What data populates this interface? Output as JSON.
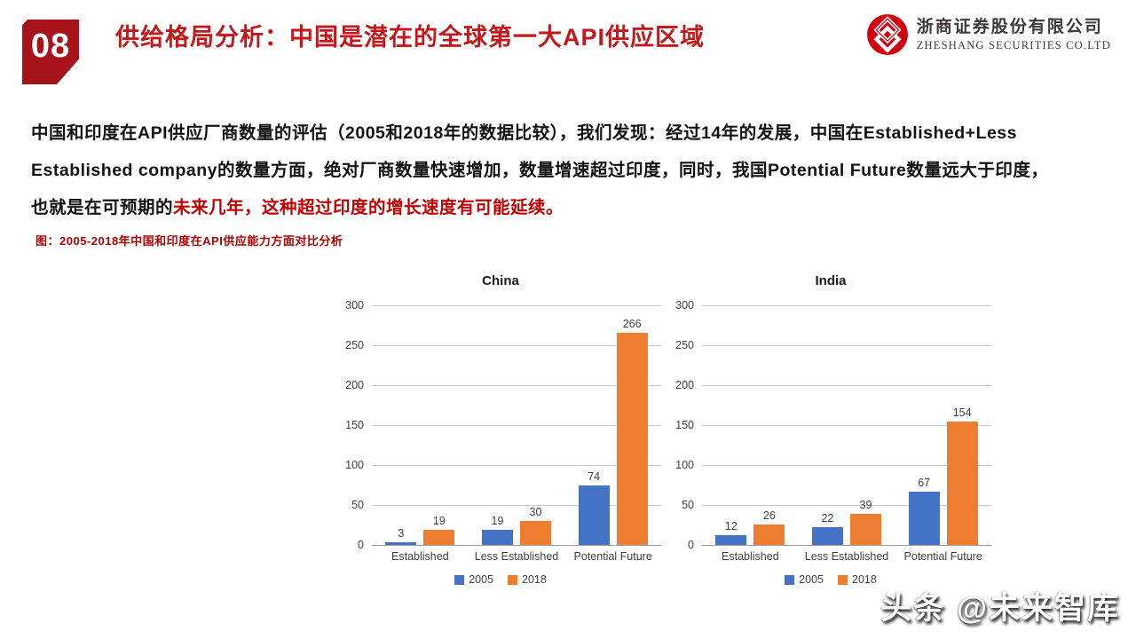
{
  "header": {
    "page_number": "08",
    "title": "供给格局分析：中国是潜在的全球第一大API供应区域",
    "logo": {
      "company_cn": "浙商证券股份有限公司",
      "company_en": "ZHESHANG SECURITIES CO.LTD"
    }
  },
  "body": {
    "line1": "中国和印度在API供应厂商数量的评估（2005和2018年的数据比较），我们发现：经过14年的发展，中国在Established+Less",
    "line2": "Established company的数量方面，绝对厂商数量快速增加，数量增速超过印度，同时，我国Potential Future数量远大于印度，",
    "line3_black": "也就是在可预期的",
    "line3_red": "未来几年，这种超过印度的增长速度有可能延续。"
  },
  "figure": {
    "caption": "图：2005-2018年中国和印度在API供应能力方面对比分析"
  },
  "chart_data": [
    {
      "type": "bar",
      "title": "China",
      "categories": [
        "Established",
        "Less Established",
        "Potential Future"
      ],
      "series": [
        {
          "name": "2005",
          "color": "#4472C4",
          "values": [
            3,
            19,
            74
          ]
        },
        {
          "name": "2018",
          "color": "#ED7D31",
          "values": [
            19,
            30,
            266
          ]
        }
      ],
      "ylim": [
        0,
        300
      ],
      "ytick_step": 50,
      "grid": true,
      "legend_position": "bottom"
    },
    {
      "type": "bar",
      "title": "India",
      "categories": [
        "Established",
        "Less Established",
        "Potential Future"
      ],
      "series": [
        {
          "name": "2005",
          "color": "#4472C4",
          "values": [
            12,
            22,
            67
          ]
        },
        {
          "name": "2018",
          "color": "#ED7D31",
          "values": [
            26,
            39,
            154
          ]
        }
      ],
      "ylim": [
        0,
        300
      ],
      "ytick_step": 50,
      "grid": true,
      "legend_position": "bottom"
    }
  ],
  "watermark": {
    "text": "头条 @未来智库"
  },
  "colors": {
    "title_red": "#C2191D",
    "badge_red": "#A6131B",
    "caption_red": "#B00000",
    "highlight_red": "#C00000",
    "logo_red": "#D2000F",
    "bar_blue": "#4472C4",
    "bar_orange": "#ED7D31",
    "gridline_gray": "#C9C9C9"
  }
}
